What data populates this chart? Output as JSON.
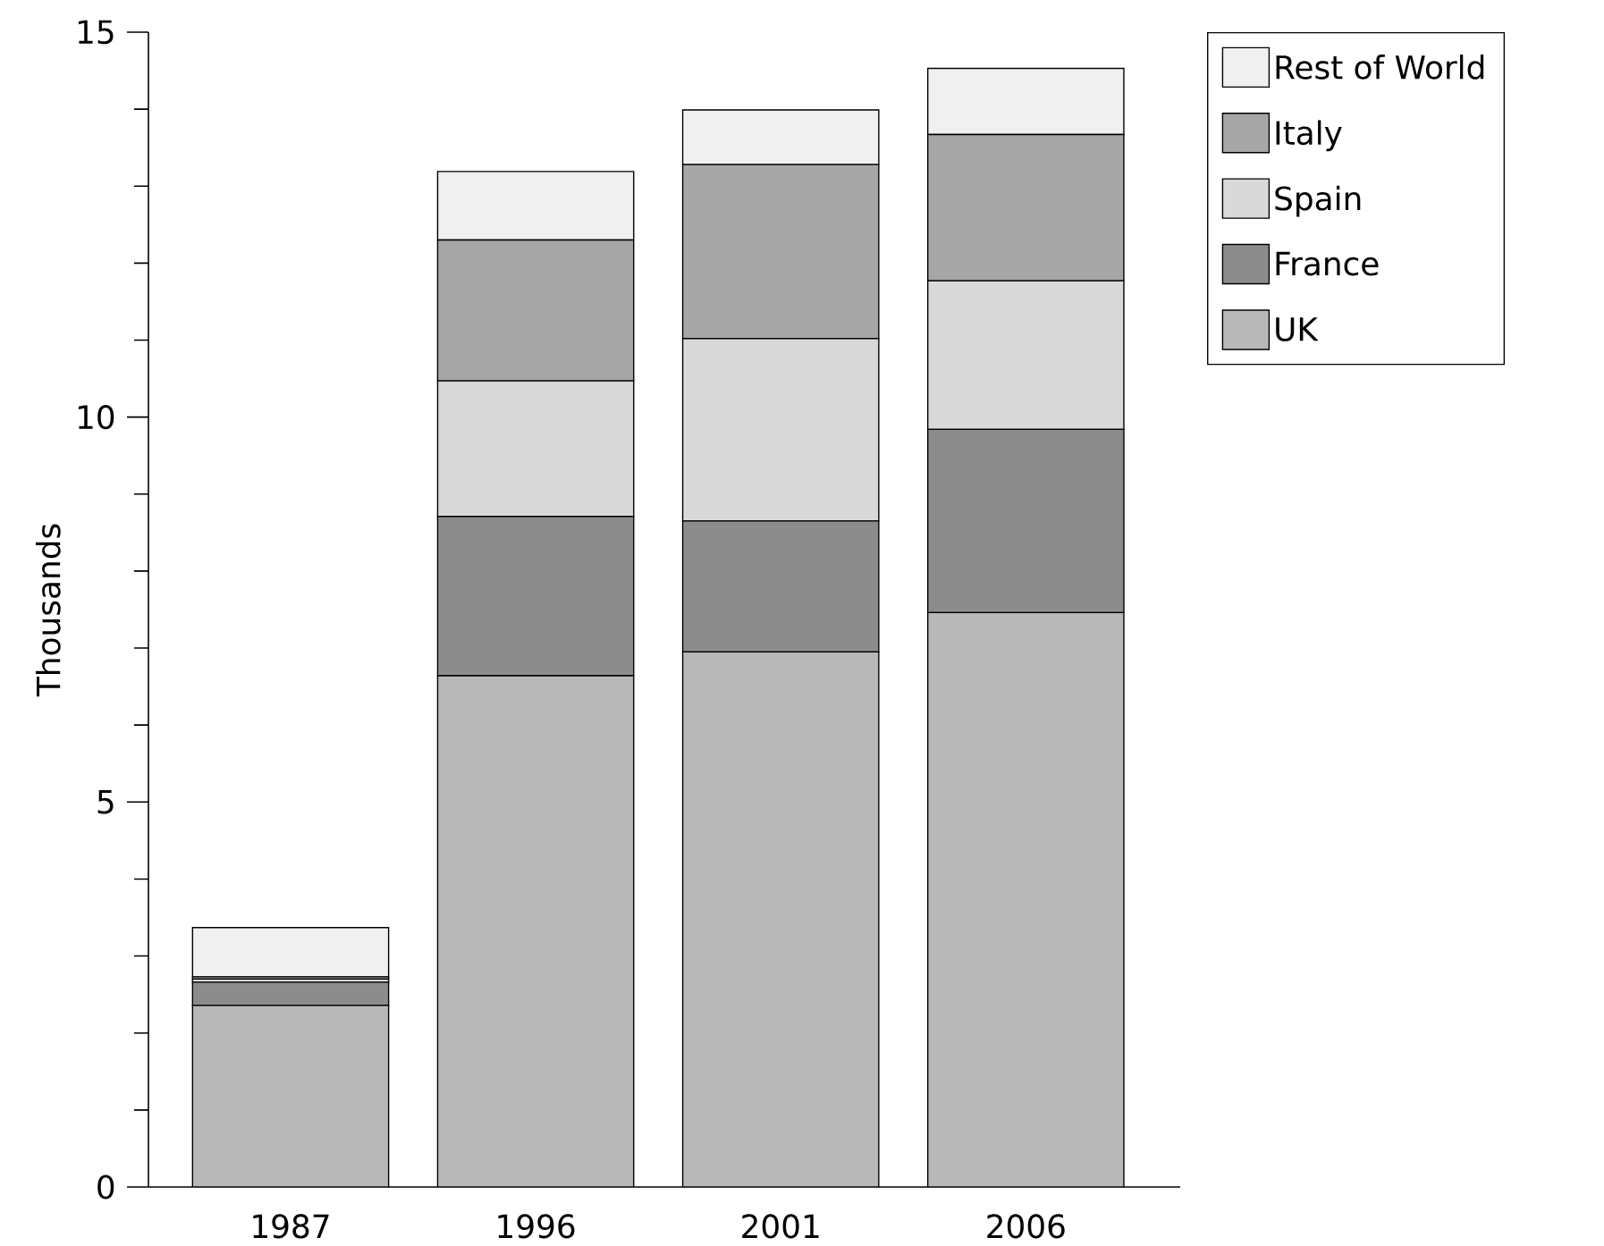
{
  "chart_data": {
    "type": "bar",
    "stacked": true,
    "ylabel": "Thousands",
    "categories": [
      "1987",
      "1996",
      "2001",
      "2006"
    ],
    "series": [
      {
        "name": "UK",
        "color": "#b8b8b8",
        "values": [
          2.36,
          6.64,
          6.95,
          7.46
        ]
      },
      {
        "name": "France",
        "color": "#8c8c8c",
        "values": [
          0.3,
          2.07,
          1.7,
          2.38
        ]
      },
      {
        "name": "Spain",
        "color": "#d9d9d9",
        "values": [
          0.04,
          1.76,
          2.37,
          1.93
        ]
      },
      {
        "name": "Italy",
        "color": "#a6a6a6",
        "values": [
          0.03,
          1.83,
          2.26,
          1.9
        ]
      },
      {
        "name": "Rest of World",
        "color": "#f0f0f0",
        "values": [
          0.64,
          0.89,
          0.71,
          0.86
        ]
      }
    ],
    "ylim": [
      0,
      15
    ],
    "yticks": [
      0,
      5,
      10,
      15
    ],
    "grid": false,
    "legend": "top right"
  }
}
